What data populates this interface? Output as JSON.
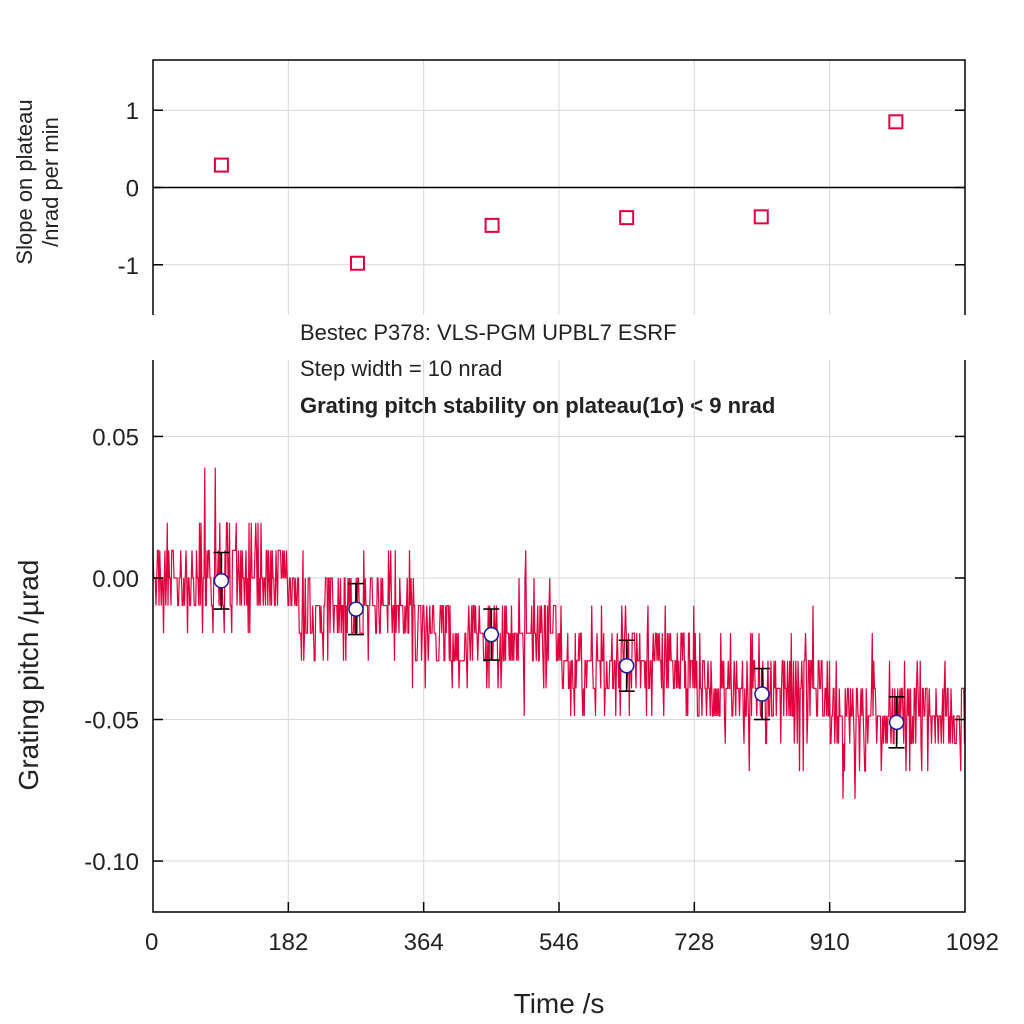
{
  "colors": {
    "signal": "#e0003c",
    "marker_fill": "#ffffff",
    "marker_edge": "#1a1aa0",
    "errorbar": "#000000",
    "grid": "#d8d8d8"
  },
  "chart_data": [
    {
      "id": "top",
      "type": "scatter",
      "ylabel_line1": "Slope on plateau",
      "ylabel_line2": "/nrad per min",
      "xlim": [
        0,
        1092
      ],
      "ylim": [
        -1.65,
        1.65
      ],
      "y_ticks": [
        {
          "value": 1,
          "label": "1"
        },
        {
          "value": 0,
          "label": "0"
        },
        {
          "value": -1,
          "label": "-1"
        }
      ],
      "zero_line": true,
      "points": [
        {
          "x": 92,
          "y": 0.29
        },
        {
          "x": 275,
          "y": -0.98
        },
        {
          "x": 456,
          "y": -0.49
        },
        {
          "x": 637,
          "y": -0.39
        },
        {
          "x": 818,
          "y": -0.38
        },
        {
          "x": 999,
          "y": 0.85
        }
      ],
      "marker": "open-square"
    },
    {
      "id": "bottom",
      "type": "line",
      "title_line1": "Bestec P378: VLS-PGM UPBL7 ESRF",
      "title_line2": "Step width = 10 nrad",
      "title_line3": "Grating pitch stability on plateau(1σ) < 9 nrad",
      "xlabel": "Time /s",
      "ylabel": "Grating pitch /µrad",
      "xlim": [
        0,
        1092
      ],
      "ylim": [
        -0.118,
        0.077
      ],
      "x_ticks": [
        {
          "value": 0,
          "label": "0"
        },
        {
          "value": 182,
          "label": "182"
        },
        {
          "value": 364,
          "label": "364"
        },
        {
          "value": 546,
          "label": "546"
        },
        {
          "value": 728,
          "label": "728"
        },
        {
          "value": 910,
          "label": "910"
        },
        {
          "value": 1092,
          "label": "1092"
        }
      ],
      "y_ticks": [
        {
          "value": 0.05,
          "label": "0.05"
        },
        {
          "value": 0.0,
          "label": "0.00"
        },
        {
          "value": -0.05,
          "label": "-0.05"
        },
        {
          "value": -0.1,
          "label": "-0.10"
        }
      ],
      "signal": {
        "name": "grating pitch trace",
        "plateaus": [
          {
            "t_start": 0,
            "t_end": 182,
            "mean": 0.0,
            "sigma": 0.009
          },
          {
            "t_start": 182,
            "t_end": 364,
            "mean": -0.01,
            "sigma": 0.009
          },
          {
            "t_start": 364,
            "t_end": 546,
            "mean": -0.02,
            "sigma": 0.009
          },
          {
            "t_start": 546,
            "t_end": 728,
            "mean": -0.03,
            "sigma": 0.009
          },
          {
            "t_start": 728,
            "t_end": 910,
            "mean": -0.04,
            "sigma": 0.009
          },
          {
            "t_start": 910,
            "t_end": 1092,
            "mean": -0.05,
            "sigma": 0.009
          }
        ]
      },
      "means": [
        {
          "x": 92,
          "y": -0.001,
          "err": 0.01
        },
        {
          "x": 273,
          "y": -0.011,
          "err": 0.009
        },
        {
          "x": 455,
          "y": -0.02,
          "err": 0.009
        },
        {
          "x": 637,
          "y": -0.031,
          "err": 0.009
        },
        {
          "x": 819,
          "y": -0.041,
          "err": 0.009
        },
        {
          "x": 1000,
          "y": -0.051,
          "err": 0.009
        }
      ]
    }
  ]
}
